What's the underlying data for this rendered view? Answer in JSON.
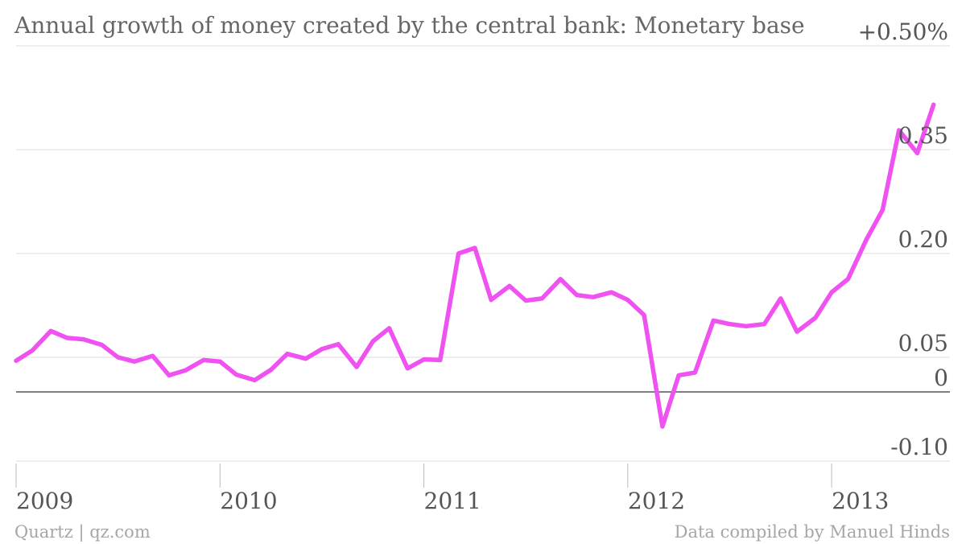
{
  "chart_data": {
    "type": "line",
    "title": "Annual growth of money created by the central bank: Monetary base",
    "xlabel": "",
    "ylabel": "",
    "y_unit": "%",
    "ylim": [
      -0.1,
      0.5
    ],
    "y_ticks": [
      {
        "value": -0.1,
        "label": "-0.10"
      },
      {
        "value": 0,
        "label": "0"
      },
      {
        "value": 0.05,
        "label": "0.05"
      },
      {
        "value": 0.2,
        "label": "0.20"
      },
      {
        "value": 0.35,
        "label": "0.35"
      },
      {
        "value": 0.5,
        "label": "+0.50%"
      }
    ],
    "x_ticks": [
      {
        "value": 2009,
        "label": "2009"
      },
      {
        "value": 2010,
        "label": "2010"
      },
      {
        "value": 2011,
        "label": "2011"
      },
      {
        "value": 2012,
        "label": "2012"
      },
      {
        "value": 2013,
        "label": "2013"
      }
    ],
    "grid": "horizontal",
    "colors": {
      "line": "#f052f2",
      "grid": "#dddddd",
      "zero": "#555555",
      "text": "#555555"
    },
    "series": [
      {
        "x": [
          2009.0,
          2009.08,
          2009.17,
          2009.25,
          2009.33,
          2009.42,
          2009.5,
          2009.58,
          2009.67,
          2009.75,
          2009.83,
          2009.92,
          2010.0,
          2010.08,
          2010.17,
          2010.25,
          2010.33,
          2010.42,
          2010.5,
          2010.58,
          2010.67,
          2010.75,
          2010.83,
          2010.92,
          2011.0,
          2011.08,
          2011.17,
          2011.25,
          2011.33,
          2011.42,
          2011.5,
          2011.58,
          2011.67,
          2011.75,
          2011.83,
          2011.92,
          2012.0,
          2012.08,
          2012.17,
          2012.25,
          2012.33,
          2012.42,
          2012.5,
          2012.58,
          2012.67,
          2012.75,
          2012.83,
          2012.92,
          2013.0,
          2013.08,
          2013.17,
          2013.25,
          2013.33,
          2013.42,
          2013.5
        ],
        "values": [
          0.045,
          0.06,
          0.088,
          0.078,
          0.076,
          0.068,
          0.05,
          0.044,
          0.052,
          0.024,
          0.031,
          0.046,
          0.044,
          0.025,
          0.017,
          0.032,
          0.055,
          0.048,
          0.062,
          0.069,
          0.036,
          0.073,
          0.092,
          0.034,
          0.047,
          0.046,
          0.2,
          0.208,
          0.133,
          0.153,
          0.132,
          0.135,
          0.163,
          0.14,
          0.137,
          0.144,
          0.133,
          0.111,
          -0.05,
          0.024,
          0.028,
          0.103,
          0.098,
          0.095,
          0.098,
          0.135,
          0.087,
          0.107,
          0.144,
          0.163,
          0.22,
          0.263,
          0.378,
          0.345,
          0.415
        ]
      }
    ]
  },
  "footer": {
    "source_left": "Quartz | qz.com",
    "source_right": "Data compiled by Manuel Hinds"
  }
}
